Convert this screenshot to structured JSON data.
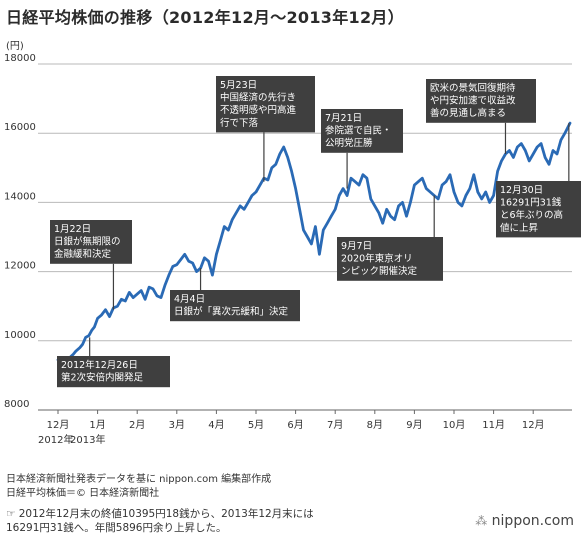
{
  "title": "日経平均株価の推移（2012年12月〜2013年12月）",
  "chart_data": {
    "type": "line",
    "title": "日経平均株価の推移（2012年12月〜2013年12月）",
    "ylabel": "(円)",
    "ylim": [
      8000,
      18000
    ],
    "yticks": [
      8000,
      10000,
      12000,
      14000,
      16000,
      18000
    ],
    "ytick_labels": [
      "8000",
      "10000",
      "12000",
      "14000",
      "16000",
      "18000"
    ],
    "x_categories": [
      "12月",
      "1月",
      "2月",
      "3月",
      "4月",
      "5月",
      "6月",
      "7月",
      "8月",
      "9月",
      "10月",
      "11月",
      "12月"
    ],
    "x_year_labels": [
      "2012年",
      "2013年"
    ],
    "grid": true,
    "line_color": "#2a6ab5",
    "series": [
      {
        "x": [
          0,
          0.05,
          0.12,
          0.2,
          0.3,
          0.38,
          0.45,
          0.55,
          0.62,
          0.7,
          0.78,
          0.85,
          0.92,
          1.0,
          1.1,
          1.2,
          1.3,
          1.4,
          1.5,
          1.6,
          1.7,
          1.8,
          1.9,
          2.0,
          2.1,
          2.2,
          2.3,
          2.4,
          2.5,
          2.6,
          2.7,
          2.8,
          2.9,
          3.0,
          3.1,
          3.2,
          3.3,
          3.4,
          3.5,
          3.6,
          3.7,
          3.8,
          3.9,
          4.0,
          4.1,
          4.2,
          4.3,
          4.4,
          4.5,
          4.6,
          4.7,
          4.8,
          4.9,
          5.0,
          5.1,
          5.2,
          5.3,
          5.4,
          5.5,
          5.6,
          5.7,
          5.8,
          5.9,
          6.0,
          6.1,
          6.2,
          6.3,
          6.4,
          6.5,
          6.6,
          6.7,
          6.8,
          6.9,
          7.0,
          7.1,
          7.2,
          7.3,
          7.4,
          7.5,
          7.6,
          7.7,
          7.8,
          7.9,
          8.0,
          8.1,
          8.2,
          8.3,
          8.4,
          8.5,
          8.6,
          8.7,
          8.8,
          8.9,
          9.0,
          9.1,
          9.2,
          9.3,
          9.4,
          9.5,
          9.6,
          9.7,
          9.8,
          9.9,
          10.0,
          10.1,
          10.2,
          10.3,
          10.4,
          10.5,
          10.6,
          10.7,
          10.8,
          10.9,
          11.0,
          11.1,
          11.2,
          11.3,
          11.4,
          11.5,
          11.6,
          11.7,
          11.8,
          11.9,
          12.0,
          12.1,
          12.2,
          12.3,
          12.4,
          12.5,
          12.6,
          12.7,
          12.8,
          12.93
        ],
        "values": [
          9450,
          9400,
          9480,
          9500,
          9520,
          9600,
          9700,
          9800,
          9900,
          10100,
          10150,
          10300,
          10400,
          10650,
          10750,
          10900,
          10700,
          10950,
          11000,
          11200,
          11150,
          11400,
          11250,
          11350,
          11450,
          11200,
          11550,
          11500,
          11300,
          11250,
          11600,
          11900,
          12150,
          12200,
          12350,
          12500,
          12300,
          12250,
          12000,
          12100,
          12400,
          12300,
          11900,
          12500,
          12900,
          13300,
          13200,
          13500,
          13700,
          13900,
          13800,
          14000,
          14200,
          14300,
          14500,
          14700,
          14650,
          15000,
          15100,
          15400,
          15600,
          15300,
          14900,
          14400,
          13800,
          13200,
          13000,
          12800,
          13300,
          12500,
          13200,
          13400,
          13600,
          13800,
          14200,
          14400,
          14200,
          14700,
          14600,
          14500,
          14800,
          14700,
          14100,
          13900,
          13700,
          13400,
          13800,
          13600,
          13500,
          13900,
          14000,
          13600,
          14000,
          14500,
          14600,
          14700,
          14400,
          14300,
          14200,
          14100,
          14500,
          14600,
          14800,
          14300,
          14000,
          13900,
          14200,
          14400,
          14800,
          14300,
          14100,
          14300,
          14000,
          14200,
          14900,
          15200,
          15400,
          15500,
          15300,
          15600,
          15700,
          15500,
          15200,
          15400,
          15600,
          15700,
          15300,
          15100,
          15500,
          15400,
          15800,
          16000,
          16291
        ]
      }
    ],
    "annotations": [
      {
        "id": "ann-2012-12-26",
        "lines": [
          "2012年12月26日",
          "第2次安倍内閣発足"
        ]
      },
      {
        "id": "ann-1-22",
        "lines": [
          "1月22日",
          "日銀が無期限の",
          "金融緩和決定"
        ]
      },
      {
        "id": "ann-4-4",
        "lines": [
          "4月4日",
          "日銀が「異次元緩和」決定"
        ]
      },
      {
        "id": "ann-5-23",
        "lines": [
          "5月23日",
          "中国経済の先行き",
          "不透明感や円高進",
          "行で下落"
        ]
      },
      {
        "id": "ann-7-21",
        "lines": [
          "7月21日",
          "参院選で自民・",
          "公明党圧勝"
        ]
      },
      {
        "id": "ann-9-7",
        "lines": [
          "9月7日",
          "2020年東京オリ",
          "ンピック開催決定"
        ]
      },
      {
        "id": "ann-forex",
        "lines": [
          "欧米の景気回復期待",
          "や円安加速で収益改",
          "善の見通し高まる"
        ]
      },
      {
        "id": "ann-12-30",
        "lines": [
          "12月30日",
          "16291円31銭",
          "と6年ぶりの高",
          "値に上昇"
        ]
      }
    ]
  },
  "source_lines": [
    "日本経済新聞社発表データを基に nippon.com 編集部作成",
    "日経平均株価＝© 日本経済新聞社"
  ],
  "note_lines": [
    "☞ 2012年12月末の終値10395円18銭から、2013年12月末には",
    "16291円31銭へ。年間5896円余り上昇した。"
  ],
  "brand": "nippon.com"
}
